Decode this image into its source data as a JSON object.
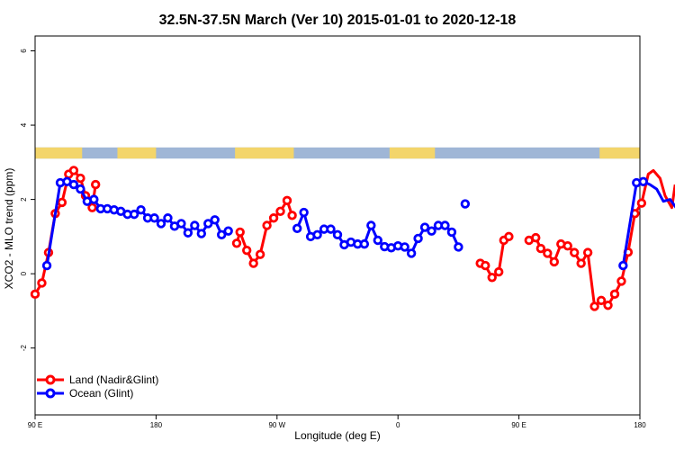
{
  "chart_data": {
    "type": "line",
    "title": "32.5N-37.5N March (Ver 10)   2015-01-01 to 2020-12-18",
    "xlabel": "Longitude (deg E)",
    "ylabel": "XCO2 - MLO trend (ppm)",
    "xlim": [
      90,
      450
    ],
    "ylim": [
      -3.8,
      6.4
    ],
    "x_ticks": [
      {
        "value": 90,
        "label": "90 E"
      },
      {
        "value": 180,
        "label": "180"
      },
      {
        "value": 270,
        "label": "90 W"
      },
      {
        "value": 360,
        "label": "0"
      },
      {
        "value": 450,
        "label": "90 E"
      },
      {
        "value": 540,
        "label": "180"
      }
    ],
    "x_tick_values": [
      90,
      162,
      234,
      306,
      378,
      450
    ],
    "y_ticks": [
      {
        "value": -2,
        "label": "-2"
      },
      {
        "value": 0,
        "label": "0"
      },
      {
        "value": 2,
        "label": "2"
      },
      {
        "value": 4,
        "label": "4"
      },
      {
        "value": 6,
        "label": "6"
      }
    ],
    "grid": false,
    "legend_position": "bottom-left",
    "surface_band": {
      "y_range": [
        3.1,
        3.4
      ],
      "ocean_color": "#9fb6d6",
      "land_color": "#f3d56a",
      "land_segments": [
        [
          90,
          118
        ],
        [
          139,
          162
        ],
        [
          209,
          244
        ],
        [
          301,
          328
        ],
        [
          426,
          454
        ],
        [
          475,
          494
        ]
      ]
    },
    "series": [
      {
        "name": "Land (Nadir&Glint)",
        "color": "#ff0000",
        "segments": [
          [
            [
              90,
              -0.55
            ],
            [
              94,
              -0.25
            ],
            [
              98,
              0.57
            ],
            [
              102,
              1.62
            ],
            [
              106,
              1.92
            ],
            [
              110,
              2.68
            ],
            [
              113,
              2.78
            ],
            [
              117,
              2.57
            ],
            [
              120,
              2.1
            ],
            [
              124,
              1.78
            ],
            [
              126,
              2.4
            ]
          ],
          [
            [
              210,
              0.82
            ],
            [
              212,
              1.12
            ],
            [
              216,
              0.63
            ],
            [
              220,
              0.28
            ],
            [
              224,
              0.52
            ],
            [
              228,
              1.3
            ],
            [
              232,
              1.5
            ],
            [
              236,
              1.68
            ],
            [
              240,
              1.97
            ],
            [
              243,
              1.57
            ]
          ],
          [
            [
              355,
              0.28
            ],
            [
              358,
              0.22
            ],
            [
              362,
              -0.1
            ],
            [
              366,
              0.05
            ],
            [
              369,
              0.9
            ],
            [
              372,
              1.0
            ]
          ],
          [
            [
              384,
              0.9
            ],
            [
              388,
              0.97
            ],
            [
              391,
              0.68
            ],
            [
              395,
              0.55
            ],
            [
              399,
              0.32
            ],
            [
              403,
              0.8
            ],
            [
              407,
              0.75
            ],
            [
              411,
              0.57
            ],
            [
              415,
              0.28
            ],
            [
              419,
              0.57
            ],
            [
              423,
              -0.88
            ],
            [
              427,
              -0.72
            ],
            [
              431,
              -0.85
            ],
            [
              435,
              -0.55
            ],
            [
              439,
              -0.2
            ],
            [
              443,
              0.58
            ],
            [
              447,
              1.62
            ],
            [
              451,
              1.9
            ],
            [
              455,
              2.68
            ],
            [
              458,
              2.78
            ],
            [
              462,
              2.57
            ],
            [
              465,
              2.1
            ],
            [
              469,
              1.78
            ],
            [
              471,
              2.4
            ]
          ]
        ]
      },
      {
        "name": "Ocean (Glint)",
        "color": "#0000ff",
        "segments": [
          [
            [
              97,
              0.22
            ],
            [
              105,
              2.45
            ],
            [
              109,
              2.48
            ],
            [
              113,
              2.4
            ],
            [
              117,
              2.28
            ],
            [
              121,
              1.95
            ],
            [
              125,
              2.0
            ],
            [
              129,
              1.75
            ],
            [
              133,
              1.75
            ],
            [
              137,
              1.72
            ],
            [
              141,
              1.68
            ],
            [
              145,
              1.6
            ],
            [
              149,
              1.6
            ],
            [
              153,
              1.72
            ],
            [
              157,
              1.5
            ],
            [
              161,
              1.5
            ],
            [
              165,
              1.35
            ],
            [
              169,
              1.5
            ],
            [
              173,
              1.28
            ],
            [
              177,
              1.35
            ],
            [
              181,
              1.1
            ],
            [
              185,
              1.3
            ],
            [
              189,
              1.08
            ],
            [
              193,
              1.35
            ],
            [
              197,
              1.45
            ],
            [
              201,
              1.05
            ],
            [
              205,
              1.15
            ]
          ],
          [
            [
              246,
              1.22
            ],
            [
              250,
              1.65
            ],
            [
              254,
              1.0
            ],
            [
              258,
              1.05
            ],
            [
              262,
              1.2
            ],
            [
              266,
              1.2
            ],
            [
              270,
              1.05
            ],
            [
              274,
              0.78
            ],
            [
              278,
              0.85
            ],
            [
              282,
              0.8
            ],
            [
              286,
              0.8
            ],
            [
              290,
              1.3
            ],
            [
              294,
              0.9
            ],
            [
              298,
              0.73
            ],
            [
              302,
              0.7
            ],
            [
              306,
              0.75
            ],
            [
              310,
              0.72
            ],
            [
              314,
              0.55
            ],
            [
              318,
              0.95
            ],
            [
              322,
              1.25
            ],
            [
              326,
              1.15
            ],
            [
              330,
              1.3
            ],
            [
              334,
              1.3
            ],
            [
              338,
              1.12
            ],
            [
              342,
              0.72
            ]
          ],
          [
            [
              346,
              1.88
            ]
          ],
          [
            [
              440,
              0.22
            ],
            [
              448,
              2.45
            ],
            [
              452,
              2.48
            ],
            [
              456,
              2.4
            ],
            [
              460,
              2.28
            ],
            [
              464,
              1.95
            ],
            [
              468,
              2.0
            ],
            [
              472,
              1.75
            ],
            [
              476,
              1.75
            ],
            [
              480,
              1.72
            ],
            [
              484,
              1.68
            ],
            [
              488,
              1.6
            ],
            [
              492,
              1.6
            ],
            [
              496,
              1.72
            ]
          ]
        ]
      }
    ]
  }
}
